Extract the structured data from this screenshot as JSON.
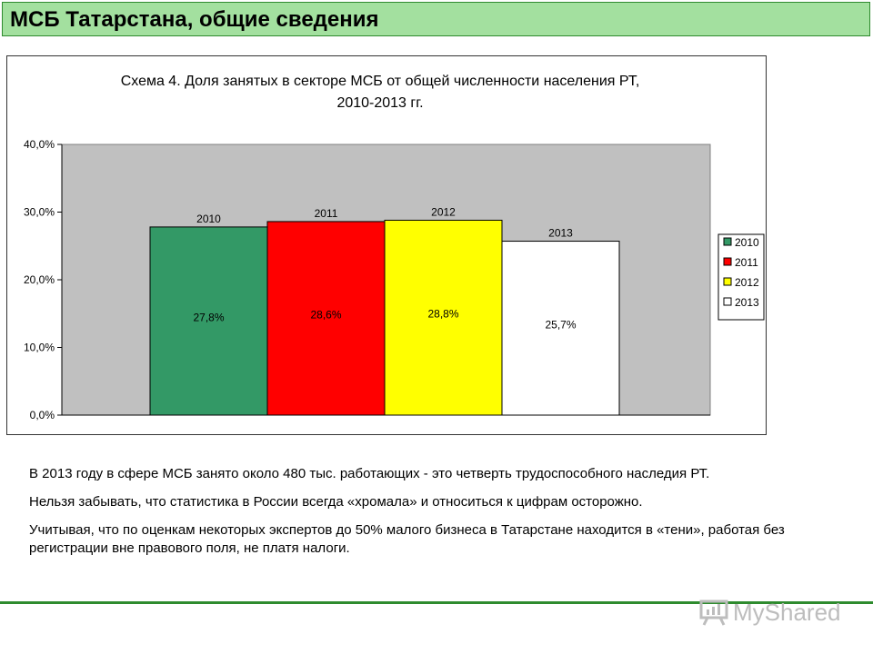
{
  "slide_title": "МСБ Татарстана, общие сведения",
  "chart_data": {
    "type": "bar",
    "title": "Схема 4. Доля занятых в секторе МСБ от общей численности населения РТ,",
    "subtitle": "2010-2013 гг.",
    "categories": [
      "2010",
      "2011",
      "2012",
      "2013"
    ],
    "values": [
      27.8,
      28.6,
      28.8,
      25.7
    ],
    "value_labels": [
      "27,8%",
      "28,6%",
      "28,8%",
      "25,7%"
    ],
    "bar_colors": [
      "#339966",
      "#ff0000",
      "#ffff00",
      "#ffffff"
    ],
    "ylim": [
      0,
      40
    ],
    "yticks": [
      "0,0%",
      "10,0%",
      "20,0%",
      "30,0%",
      "40,0%"
    ],
    "legend": [
      "2010",
      "2011",
      "2012",
      "2013"
    ],
    "legend_position": "right",
    "plot_background": "#c0c0c0",
    "grid": false,
    "xlabel": "",
    "ylabel": ""
  },
  "notes": [
    "В 2013 году в сфере МСБ занято около 480 тыс. работающих - это четверть трудоспособного наследия РТ.",
    "Нельзя забывать, что статистика в России всегда «хромала» и относиться к цифрам осторожно.",
    "Учитывая, что по оценкам некоторых экспертов до 50% малого бизнеса в Татарстане находится в «тени», работая без регистрации вне правового поля, не платя налоги."
  ],
  "watermark": "MyShared",
  "colors": {
    "title_bar": "#a3e09f",
    "accent_line": "#2e8b2e"
  }
}
